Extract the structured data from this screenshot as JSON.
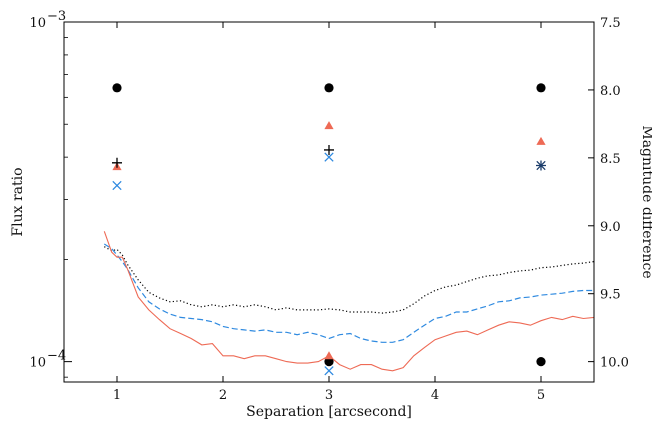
{
  "chart_data": {
    "type": "scatter",
    "title": "",
    "xlabel": "Separation [arcsecond]",
    "ylabel": "Flux ratio",
    "y2label": "Magnitude difference",
    "xlim": [
      0.5,
      5.5
    ],
    "ylim": [
      8.71e-05,
      0.001
    ],
    "yscale": "log",
    "grid": false,
    "legend": "none",
    "x_ticks": [
      1,
      2,
      3,
      4,
      5
    ],
    "y_ticks_major": [
      {
        "value": 0.0001,
        "label": "10^{-4}",
        "base": "10",
        "exp": "−4"
      },
      {
        "value": 0.001,
        "label": "10^{-3}",
        "base": "10",
        "exp": "−3"
      }
    ],
    "y2_ticks": [
      "7.5",
      "8.0",
      "8.5",
      "9.0",
      "9.5",
      "10.0"
    ],
    "y2_tick_values": [
      7.5,
      8.0,
      8.5,
      9.0,
      9.5,
      10.0
    ],
    "colors": {
      "black": "#000000",
      "red": "#ee6a55",
      "blue": "#2f8ae0",
      "navy": "#1c3d6b"
    },
    "series": [
      {
        "style": "dotted",
        "color": "#000000",
        "x": [
          0.88,
          0.95,
          1.0,
          1.05,
          1.1,
          1.2,
          1.3,
          1.4,
          1.5,
          1.6,
          1.7,
          1.8,
          1.9,
          2.0,
          2.1,
          2.2,
          2.3,
          2.4,
          2.5,
          2.6,
          2.7,
          2.8,
          2.9,
          3.0,
          3.1,
          3.2,
          3.3,
          3.4,
          3.5,
          3.6,
          3.7,
          3.8,
          3.9,
          4.0,
          4.1,
          4.2,
          4.3,
          4.4,
          4.5,
          4.6,
          4.7,
          4.8,
          4.9,
          5.0,
          5.1,
          5.2,
          5.3,
          5.4,
          5.5
        ],
        "y": [
          0.000218,
          0.000212,
          0.000214,
          0.000206,
          0.000193,
          0.000174,
          0.00016,
          0.000154,
          0.00015,
          0.000151,
          0.000147,
          0.000145,
          0.000147,
          0.000145,
          0.000147,
          0.000145,
          0.000147,
          0.000145,
          0.000142,
          0.000144,
          0.000142,
          0.000142,
          0.000142,
          0.000143,
          0.000142,
          0.00014,
          0.00014,
          0.00014,
          0.000139,
          0.00014,
          0.000142,
          0.000148,
          0.000156,
          0.000162,
          0.000166,
          0.000168,
          0.000172,
          0.000176,
          0.000179,
          0.00018,
          0.000183,
          0.000185,
          0.000186,
          0.000189,
          0.00019,
          0.000192,
          0.000194,
          0.000195,
          0.000197
        ]
      },
      {
        "style": "dashed",
        "color": "#2f8ae0",
        "x": [
          0.88,
          0.95,
          1.0,
          1.05,
          1.1,
          1.2,
          1.3,
          1.4,
          1.5,
          1.6,
          1.7,
          1.8,
          1.9,
          2.0,
          2.1,
          2.2,
          2.3,
          2.4,
          2.5,
          2.6,
          2.7,
          2.8,
          2.9,
          3.0,
          3.1,
          3.2,
          3.3,
          3.4,
          3.5,
          3.6,
          3.7,
          3.8,
          3.9,
          4.0,
          4.1,
          4.2,
          4.3,
          4.4,
          4.5,
          4.6,
          4.7,
          4.8,
          4.9,
          5.0,
          5.1,
          5.2,
          5.3,
          5.4,
          5.5
        ],
        "y": [
          0.000222,
          0.000215,
          0.000206,
          0.000197,
          0.000187,
          0.000165,
          0.00015,
          0.000143,
          0.000138,
          0.000135,
          0.000134,
          0.000133,
          0.000131,
          0.000127,
          0.000125,
          0.000124,
          0.000123,
          0.000124,
          0.000122,
          0.000122,
          0.00012,
          0.000122,
          0.00012,
          0.000117,
          0.00012,
          0.000121,
          0.000117,
          0.000115,
          0.000114,
          0.000114,
          0.000116,
          0.000122,
          0.000128,
          0.000134,
          0.000136,
          0.00014,
          0.00014,
          0.000143,
          0.000146,
          0.00015,
          0.000151,
          0.000154,
          0.000155,
          0.000157,
          0.000158,
          0.000159,
          0.000161,
          0.000162,
          0.000162
        ]
      },
      {
        "style": "solid",
        "color": "#ee6a55",
        "x": [
          0.88,
          0.95,
          1.0,
          1.05,
          1.1,
          1.2,
          1.3,
          1.4,
          1.5,
          1.6,
          1.7,
          1.8,
          1.9,
          2.0,
          2.1,
          2.2,
          2.3,
          2.4,
          2.5,
          2.6,
          2.7,
          2.8,
          2.9,
          3.0,
          3.1,
          3.2,
          3.3,
          3.4,
          3.5,
          3.6,
          3.7,
          3.8,
          3.9,
          4.0,
          4.1,
          4.2,
          4.3,
          4.4,
          4.5,
          4.6,
          4.7,
          4.8,
          4.9,
          5.0,
          5.1,
          5.2,
          5.3,
          5.4,
          5.5
        ],
        "y": [
          0.000242,
          0.00021,
          0.000203,
          0.000203,
          0.000187,
          0.000155,
          0.000142,
          0.000133,
          0.000125,
          0.000121,
          0.000117,
          0.000112,
          0.000113,
          0.000104,
          0.000104,
          0.000102,
          0.000104,
          0.000104,
          0.000102,
          0.0001,
          9.9e-05,
          9.9e-05,
          0.0001,
          0.000104,
          9.8e-05,
          9.5e-05,
          9.8e-05,
          9.8e-05,
          9.5e-05,
          9.4e-05,
          9.6e-05,
          0.000104,
          0.00011,
          0.000116,
          0.000119,
          0.000122,
          0.000123,
          0.00012,
          0.000124,
          0.000128,
          0.000131,
          0.00013,
          0.000128,
          0.000132,
          0.000135,
          0.000133,
          0.000136,
          0.000134,
          0.000135
        ]
      }
    ],
    "markers": [
      {
        "symbol": "circle",
        "color": "#000000",
        "x": 1,
        "y": 0.00064
      },
      {
        "symbol": "circle",
        "color": "#000000",
        "x": 3,
        "y": 0.00064
      },
      {
        "symbol": "circle",
        "color": "#000000",
        "x": 5,
        "y": 0.00064
      },
      {
        "symbol": "circle",
        "color": "#000000",
        "x": 3,
        "y": 0.0001
      },
      {
        "symbol": "circle",
        "color": "#000000",
        "x": 5,
        "y": 0.0001
      },
      {
        "symbol": "triangle",
        "color": "#ee6a55",
        "x": 1,
        "y": 0.000375
      },
      {
        "symbol": "triangle",
        "color": "#ee6a55",
        "x": 3,
        "y": 0.000495
      },
      {
        "symbol": "triangle",
        "color": "#ee6a55",
        "x": 5,
        "y": 0.000445
      },
      {
        "symbol": "triangle",
        "color": "#ee6a55",
        "x": 3,
        "y": 0.000104
      },
      {
        "symbol": "plus",
        "color": "#000000",
        "x": 1,
        "y": 0.000385
      },
      {
        "symbol": "plus",
        "color": "#000000",
        "x": 3,
        "y": 0.00042
      },
      {
        "symbol": "plus",
        "color": "#1c3d6b",
        "x": 5,
        "y": 0.000378
      },
      {
        "symbol": "cross",
        "color": "#2f8ae0",
        "x": 1,
        "y": 0.00033
      },
      {
        "symbol": "cross",
        "color": "#2f8ae0",
        "x": 3,
        "y": 0.0004
      },
      {
        "symbol": "cross",
        "color": "#1c3d6b",
        "x": 5,
        "y": 0.000378
      },
      {
        "symbol": "cross",
        "color": "#2f8ae0",
        "x": 3,
        "y": 9.4e-05
      }
    ]
  }
}
